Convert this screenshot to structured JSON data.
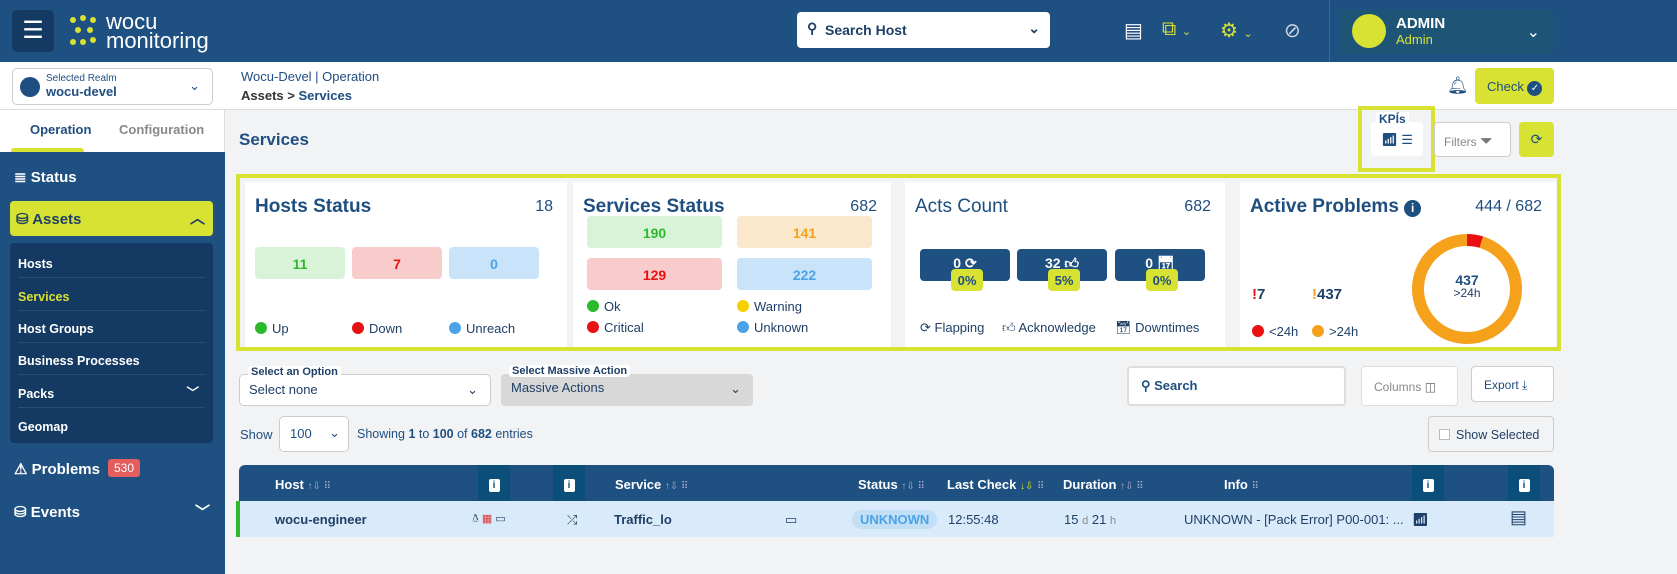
{
  "header": {
    "logo_line1": "wocu",
    "logo_line2": "monitoring",
    "search_placeholder": "Search Host",
    "user_name": "ADMIN",
    "user_role": "Admin"
  },
  "realm": {
    "label": "Selected Realm",
    "value": "wocu-devel"
  },
  "breadcrumb": {
    "line1": "Wocu-Devel | Operation",
    "section": "Assets",
    "sep": " > ",
    "page": "Services"
  },
  "toolbar": {
    "check_label": "Check",
    "kpis_label": "KPÍs",
    "filters_label": "Filters"
  },
  "sidebar": {
    "tabs": [
      "Operation",
      "Configuration"
    ],
    "status": "Status",
    "assets": "Assets",
    "assets_items": [
      "Hosts",
      "Services",
      "Host Groups",
      "Business Processes",
      "Packs",
      "Geomap"
    ],
    "problems": "Problems",
    "problems_count": "530",
    "events": "Events"
  },
  "page_title": "Services",
  "kpi": {
    "hosts": {
      "title": "Hosts Status",
      "total": "18",
      "up": "11",
      "down": "7",
      "unreach": "0",
      "legend": [
        "Up",
        "Down",
        "Unreach"
      ]
    },
    "services": {
      "title": "Services Status",
      "total": "682",
      "ok": "190",
      "warning": "141",
      "critical": "129",
      "unknown": "222",
      "legend": [
        "Ok",
        "Warning",
        "Critical",
        "Unknown"
      ]
    },
    "acts": {
      "title": "Acts Count",
      "total": "682",
      "flapping": "0",
      "flapping_pct": "0%",
      "ack": "32",
      "ack_pct": "5%",
      "downtimes": "0",
      "downtimes_pct": "0%",
      "legend": [
        "Flapping",
        "Acknowledge",
        "Downtimes"
      ]
    },
    "problems": {
      "title": "Active Problems",
      "total": "444 / 682",
      "lt24": "7",
      "gt24": "437",
      "legend": [
        "<24h",
        ">24h"
      ],
      "donut_value": "437",
      "donut_label": ">24h"
    }
  },
  "colors": {
    "primary": "#1f5082",
    "accent": "#d8e233",
    "ok": "#2db92d",
    "critical": "#e81010",
    "warning": "#f5a11c",
    "unknown": "#4aa3e8"
  },
  "filters": {
    "option_label": "Select an Option",
    "option_value": "Select none",
    "massive_label": "Select Massive Action",
    "massive_value": "Massive Actions",
    "search_placeholder": "Search",
    "columns_label": "Columns",
    "export_label": "Export",
    "show_label": "Show",
    "page_size": "100",
    "entries_prefix": "Showing ",
    "entries_from": "1",
    "entries_to_word": " to ",
    "entries_to": "100",
    "entries_of_word": " of ",
    "entries_total": "682",
    "entries_suffix": " entries",
    "show_selected": "Show Selected"
  },
  "table": {
    "columns": [
      "Host",
      "Service",
      "Status",
      "Last Check",
      "Duration",
      "Info"
    ],
    "rows": [
      {
        "host": "wocu-engineer",
        "service": "Traffic_lo",
        "status": "UNKNOWN",
        "last_check": "12:55:48",
        "duration_d": "15",
        "duration_h": "21",
        "info": "UNKNOWN - [Pack Error] P00-001: ..."
      }
    ]
  }
}
